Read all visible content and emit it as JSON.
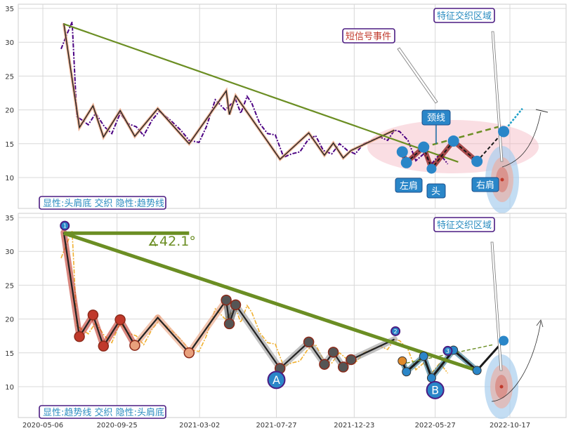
{
  "chart_data": [
    {
      "type": "line",
      "panel": "top",
      "legend_box": "显性:头肩底 交织 隐性:趋势线",
      "ylim": [
        5,
        36
      ],
      "yticks": [
        10,
        15,
        20,
        25,
        30,
        35
      ],
      "grid": true,
      "price_series": {
        "x": [
          "2020-06-10",
          "2020-06-20",
          "2020-07-01",
          "2020-07-10",
          "2020-07-20",
          "2020-08-01",
          "2020-08-15",
          "2020-09-01",
          "2020-09-15",
          "2020-10-01",
          "2020-10-15",
          "2020-11-01",
          "2020-11-15",
          "2020-12-01",
          "2020-12-15",
          "2021-01-05",
          "2021-01-25",
          "2021-02-10",
          "2021-03-01",
          "2021-03-15",
          "2021-04-01",
          "2021-04-20",
          "2021-05-10",
          "2021-05-20",
          "2021-06-01",
          "2021-06-10",
          "2021-06-25",
          "2021-07-10",
          "2021-07-25",
          "2021-08-10",
          "2021-08-25",
          "2021-09-10",
          "2021-09-25",
          "2021-10-10",
          "2021-10-25",
          "2021-11-10",
          "2021-11-25",
          "2021-12-10",
          "2021-12-25",
          "2022-01-10",
          "2022-01-25",
          "2022-02-10",
          "2022-02-25",
          "2022-03-10",
          "2022-03-20",
          "2022-04-05",
          "2022-04-20",
          "2022-05-05",
          "2022-05-20",
          "2022-06-05",
          "2022-06-20"
        ],
        "values": [
          29,
          31,
          33,
          19,
          18.5,
          17.8,
          19.5,
          17.5,
          16.5,
          19.5,
          18,
          17.5,
          16.2,
          18.5,
          19.8,
          18.5,
          17,
          15.5,
          15.2,
          17.5,
          21.5,
          20,
          21.5,
          19.5,
          22,
          21,
          18,
          16.5,
          16.3,
          13,
          13.5,
          13.8,
          15.5,
          16.2,
          14,
          13.5,
          15,
          14,
          13.5,
          15,
          15.5,
          16,
          15.5,
          17,
          16.8,
          15.5,
          12.5,
          13.5,
          12,
          13.5,
          12
        ]
      },
      "pattern_line": {
        "x": [
          "2020-06-15",
          "2020-07-15",
          "2020-08-10",
          "2020-08-30",
          "2020-10-01",
          "2020-10-29",
          "2020-12-12",
          "2021-02-10",
          "2021-04-22",
          "2021-04-28",
          "2021-05-10",
          "2021-08-03",
          "2021-09-27",
          "2021-10-27",
          "2021-11-13",
          "2021-12-02",
          "2021-12-17",
          "2022-03-10"
        ],
        "values": [
          32.8,
          17.4,
          20.6,
          16.0,
          19.9,
          16.1,
          20.2,
          15.0,
          22.8,
          19.3,
          22.1,
          12.7,
          16.6,
          13.3,
          15.1,
          12.9,
          14.0,
          17.0
        ]
      },
      "trendline": {
        "x": [
          "2020-06-15",
          "2022-07-10"
        ],
        "values": [
          32.7,
          12.3
        ]
      },
      "hs_pattern": {
        "points": [
          {
            "x": "2022-03-25",
            "y": 13.8
          },
          {
            "x": "2022-04-02",
            "y": 12.2
          },
          {
            "x": "2022-05-05",
            "y": 14.5
          },
          {
            "x": "2022-05-20",
            "y": 11.3
          },
          {
            "x": "2022-07-01",
            "y": 15.4
          },
          {
            "x": "2022-08-15",
            "y": 12.4
          },
          {
            "x": "2022-10-05",
            "y": 16.8
          }
        ],
        "neckline": {
          "x": [
            "2022-05-05",
            "2022-09-25"
          ],
          "values": [
            14.5,
            17.5
          ]
        },
        "arrow_end": {
          "x": "2022-11-10",
          "y": 20.2
        },
        "target_point": {
          "x": "2022-09-01",
          "y": 9.7
        }
      },
      "labels": {
        "left_shoulder": "左肩",
        "head": "头",
        "right_shoulder": "右肩",
        "neckline": "颈线",
        "short_signal": "短信号事件",
        "weave_zone": "特征交织区域"
      }
    },
    {
      "type": "line",
      "panel": "bottom",
      "legend_box": "显性:趋势线 交织 隐性:头肩底",
      "ylim": [
        5,
        36
      ],
      "yticks": [
        10,
        15,
        20,
        25,
        30,
        35
      ],
      "xticks": [
        "2020-05-06",
        "2020-09-25",
        "2021-03-02",
        "2021-07-27",
        "2021-12-23",
        "2022-05-27",
        "2022-10-17"
      ],
      "grid": true,
      "angle_label": "∡42.1°",
      "trendline": {
        "x": [
          "2020-06-15",
          "2022-08-15"
        ],
        "values": [
          32.7,
          12.4
        ]
      },
      "ref_line": {
        "x": [
          "2020-06-15",
          "2021-02-10"
        ],
        "values": [
          32.7,
          32.7
        ]
      },
      "dashed_extension": {
        "x": [
          "2022-04-02",
          "2022-09-15"
        ],
        "values": [
          13.5,
          16.2
        ]
      },
      "markers": {
        "A": {
          "x": "2021-07-27",
          "y": 11.0,
          "label": "A"
        },
        "B": {
          "x": "2022-05-27",
          "y": 9.5,
          "label": "B"
        },
        "n1": {
          "x": "2020-06-17",
          "y": 33.8,
          "label": "1"
        },
        "n2": {
          "x": "2022-03-12",
          "y": 18.2,
          "label": "2"
        },
        "n3": {
          "x": "2022-06-20",
          "y": 15.3,
          "label": "3"
        }
      },
      "labels": {
        "weave_zone": "特征交织区域"
      }
    }
  ]
}
